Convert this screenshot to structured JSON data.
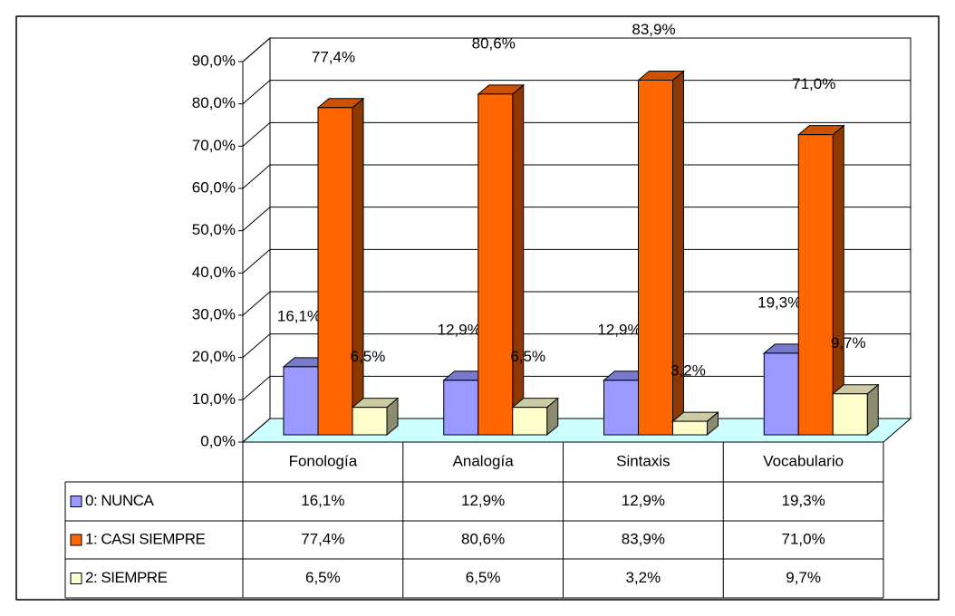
{
  "chart_data": {
    "type": "bar3d",
    "categories": [
      "Fonología",
      "Analogía",
      "Sintaxis",
      "Vocabulario"
    ],
    "series": [
      {
        "name": "0: NUNCA",
        "color": "#9999ff",
        "values": [
          16.1,
          12.9,
          12.9,
          19.3
        ],
        "value_labels": [
          "16,1%",
          "12,9%",
          "12,9%",
          "19,3%"
        ]
      },
      {
        "name": "1: CASI SIEMPRE",
        "color": "#ff6600",
        "values": [
          77.4,
          80.6,
          83.9,
          71.0
        ],
        "value_labels": [
          "77,4%",
          "80,6%",
          "83,9%",
          "71,0%"
        ]
      },
      {
        "name": "2: SIEMPRE",
        "color": "#ffffcc",
        "values": [
          6.5,
          6.5,
          3.2,
          9.7
        ],
        "value_labels": [
          "6,5%",
          "6,5%",
          "3,2%",
          "9,7%"
        ]
      }
    ],
    "ylim": [
      0,
      90
    ],
    "yticks": [
      {
        "value": 0,
        "label": "0,0%"
      },
      {
        "value": 10,
        "label": "10,0%"
      },
      {
        "value": 20,
        "label": "20,0%"
      },
      {
        "value": 30,
        "label": "30,0%"
      },
      {
        "value": 40,
        "label": "40,0%"
      },
      {
        "value": 50,
        "label": "50,0%"
      },
      {
        "value": 60,
        "label": "60,0%"
      },
      {
        "value": 70,
        "label": "70,0%"
      },
      {
        "value": 80,
        "label": "80,0%"
      },
      {
        "value": 90,
        "label": "90,0%"
      }
    ],
    "grid": true,
    "floor_color": "#ccffff"
  }
}
